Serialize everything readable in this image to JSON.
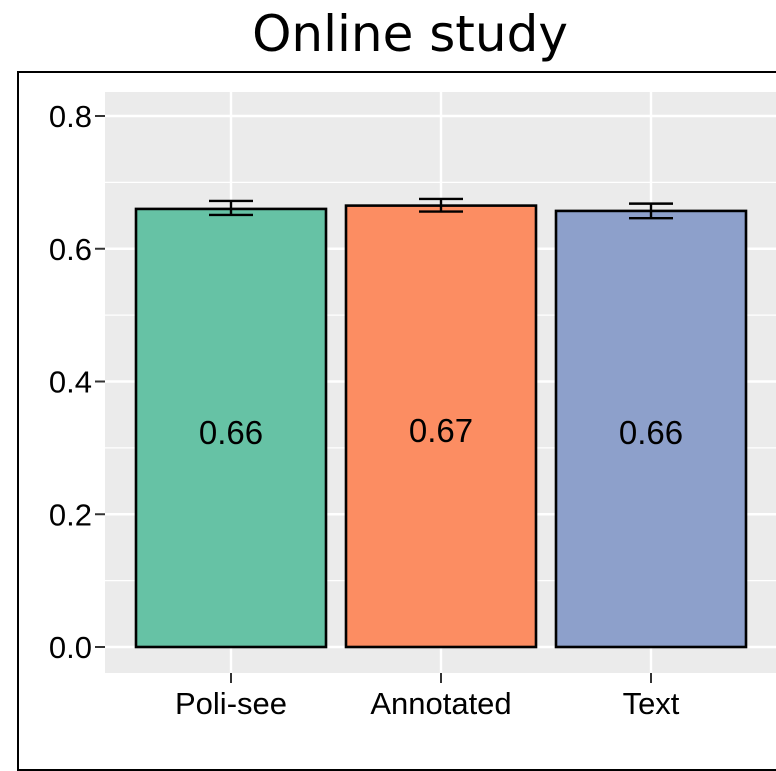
{
  "chart_data": {
    "type": "bar",
    "title": "Online study",
    "categories": [
      "Poli-see",
      "Annotated",
      "Text"
    ],
    "values": [
      0.66,
      0.665,
      0.657
    ],
    "value_labels": [
      "0.66",
      "0.67",
      "0.66"
    ],
    "error_bars": [
      {
        "low": 0.651,
        "high": 0.672
      },
      {
        "low": 0.656,
        "high": 0.675
      },
      {
        "low": 0.646,
        "high": 0.668
      }
    ],
    "colors": [
      "#66c2a5",
      "#fc8d62",
      "#8da0cb"
    ],
    "ylim": [
      0,
      0.82
    ],
    "yticks": [
      0.0,
      0.2,
      0.4,
      0.6,
      0.8
    ],
    "ytick_labels": [
      "0.0",
      "0.2",
      "0.4",
      "0.6",
      "0.8"
    ],
    "xlabel": "",
    "ylabel": "",
    "grid": true,
    "panel_background": "#ebebeb",
    "grid_color": "#ffffff"
  }
}
